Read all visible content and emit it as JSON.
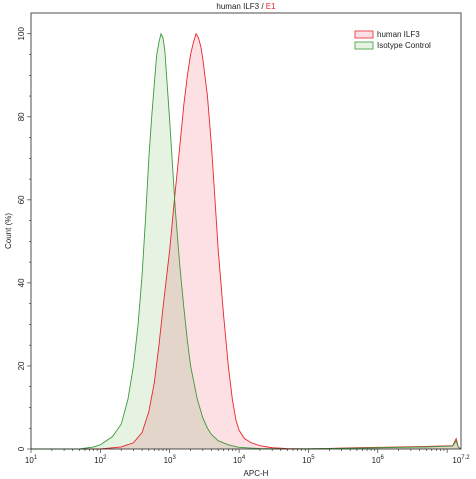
{
  "chart_data": {
    "type": "area",
    "title_main": "human ILF3",
    "title_sep": " / ",
    "title_sample": "E1",
    "title_sample_color": "#e8262b",
    "xlabel": "APC-H",
    "ylabel": "Count (%)",
    "xscale": "log",
    "xlim": [
      10,
      15848932
    ],
    "ylim": [
      0,
      105
    ],
    "x_ticks": [
      {
        "value": 10,
        "base": "10",
        "exp": "1"
      },
      {
        "value": 100,
        "base": "10",
        "exp": "2"
      },
      {
        "value": 1000,
        "base": "10",
        "exp": "3"
      },
      {
        "value": 10000,
        "base": "10",
        "exp": "4"
      },
      {
        "value": 100000,
        "base": "10",
        "exp": "5"
      },
      {
        "value": 1000000,
        "base": "10",
        "exp": "6"
      },
      {
        "value": 15848932,
        "base": "10",
        "exp": "7.2"
      }
    ],
    "y_ticks": [
      0,
      20,
      40,
      60,
      80,
      100
    ],
    "grid": false,
    "legend_position": "top-right",
    "series": [
      {
        "name": "human ILF3",
        "line_color": "#e8262b",
        "fill_color": "#fde0e3",
        "points": [
          [
            10,
            0
          ],
          [
            100,
            0
          ],
          [
            200,
            0.5
          ],
          [
            300,
            1.5
          ],
          [
            400,
            4
          ],
          [
            500,
            9
          ],
          [
            600,
            16
          ],
          [
            700,
            25
          ],
          [
            800,
            34
          ],
          [
            1000,
            48
          ],
          [
            1200,
            62
          ],
          [
            1400,
            73
          ],
          [
            1600,
            83
          ],
          [
            1800,
            90
          ],
          [
            2000,
            95
          ],
          [
            2200,
            98
          ],
          [
            2400,
            100
          ],
          [
            2600,
            99
          ],
          [
            2800,
            97
          ],
          [
            3000,
            94
          ],
          [
            3500,
            85
          ],
          [
            4000,
            73
          ],
          [
            4500,
            60
          ],
          [
            5000,
            48
          ],
          [
            6000,
            32
          ],
          [
            7000,
            20
          ],
          [
            8000,
            12
          ],
          [
            9000,
            7
          ],
          [
            10000,
            4.5
          ],
          [
            12000,
            2.5
          ],
          [
            15000,
            1.5
          ],
          [
            20000,
            0.8
          ],
          [
            30000,
            0.3
          ],
          [
            50000,
            0.1
          ],
          [
            100000,
            0
          ],
          [
            500000,
            0.3
          ],
          [
            1000000,
            0.4
          ],
          [
            5000000,
            0.6
          ],
          [
            12000000,
            0.8
          ],
          [
            13500000,
            2.5
          ],
          [
            14500000,
            0.5
          ],
          [
            15848932,
            0
          ]
        ]
      },
      {
        "name": "Isotype Control",
        "line_color": "#3a9a3a",
        "fill_color": "#e6f3e3",
        "points": [
          [
            10,
            0
          ],
          [
            50,
            0
          ],
          [
            80,
            0.5
          ],
          [
            100,
            1
          ],
          [
            150,
            3
          ],
          [
            200,
            6
          ],
          [
            250,
            12
          ],
          [
            300,
            20
          ],
          [
            350,
            30
          ],
          [
            400,
            42
          ],
          [
            450,
            56
          ],
          [
            500,
            70
          ],
          [
            550,
            80
          ],
          [
            600,
            88
          ],
          [
            650,
            95
          ],
          [
            700,
            98
          ],
          [
            750,
            100
          ],
          [
            800,
            99
          ],
          [
            850,
            96
          ],
          [
            900,
            90
          ],
          [
            1000,
            79
          ],
          [
            1100,
            68
          ],
          [
            1200,
            58
          ],
          [
            1400,
            44
          ],
          [
            1600,
            34
          ],
          [
            1800,
            26
          ],
          [
            2000,
            20
          ],
          [
            2500,
            12
          ],
          [
            3000,
            7.5
          ],
          [
            3500,
            5
          ],
          [
            4000,
            3.5
          ],
          [
            5000,
            2
          ],
          [
            7000,
            1
          ],
          [
            10000,
            0.4
          ],
          [
            20000,
            0.1
          ],
          [
            50000,
            0
          ],
          [
            500000,
            0.2
          ],
          [
            1000000,
            0.3
          ],
          [
            5000000,
            0.5
          ],
          [
            12000000,
            0.7
          ],
          [
            13500000,
            2
          ],
          [
            14500000,
            0.4
          ],
          [
            15848932,
            0
          ]
        ]
      }
    ]
  }
}
